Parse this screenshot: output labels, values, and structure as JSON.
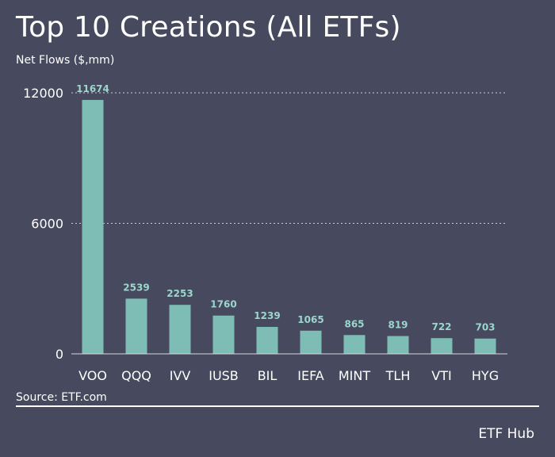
{
  "chart_data": {
    "type": "bar",
    "title": "Top 10 Creations (All ETFs)",
    "ylabel": "Net Flows ($,mm)",
    "categories": [
      "VOO",
      "QQQ",
      "IVV",
      "IUSB",
      "BIL",
      "IEFA",
      "MINT",
      "TLH",
      "VTI",
      "HYG"
    ],
    "values": [
      11674,
      2539,
      2253,
      1760,
      1239,
      1065,
      865,
      819,
      722,
      703
    ],
    "value_labels": [
      "11674",
      "2539",
      "2253",
      "1760",
      "1239",
      "1065",
      "865",
      "819",
      "722",
      "703"
    ],
    "yticks": [
      0,
      6000,
      12000
    ],
    "ytick_labels": [
      "0",
      "6000",
      "12000"
    ],
    "ylim": [
      0,
      12000
    ],
    "grid": "dotted horizontal at 6000 and 12000",
    "colors": {
      "background": "#474a5e",
      "bar": "#7dbdb5",
      "value_label": "#9ad6cc",
      "text": "#ffffff",
      "grid": "#c9cbd6",
      "axis": "#d5d7df"
    }
  },
  "footer": {
    "source": "Source: ETF.com",
    "brand": "ETF Hub"
  }
}
